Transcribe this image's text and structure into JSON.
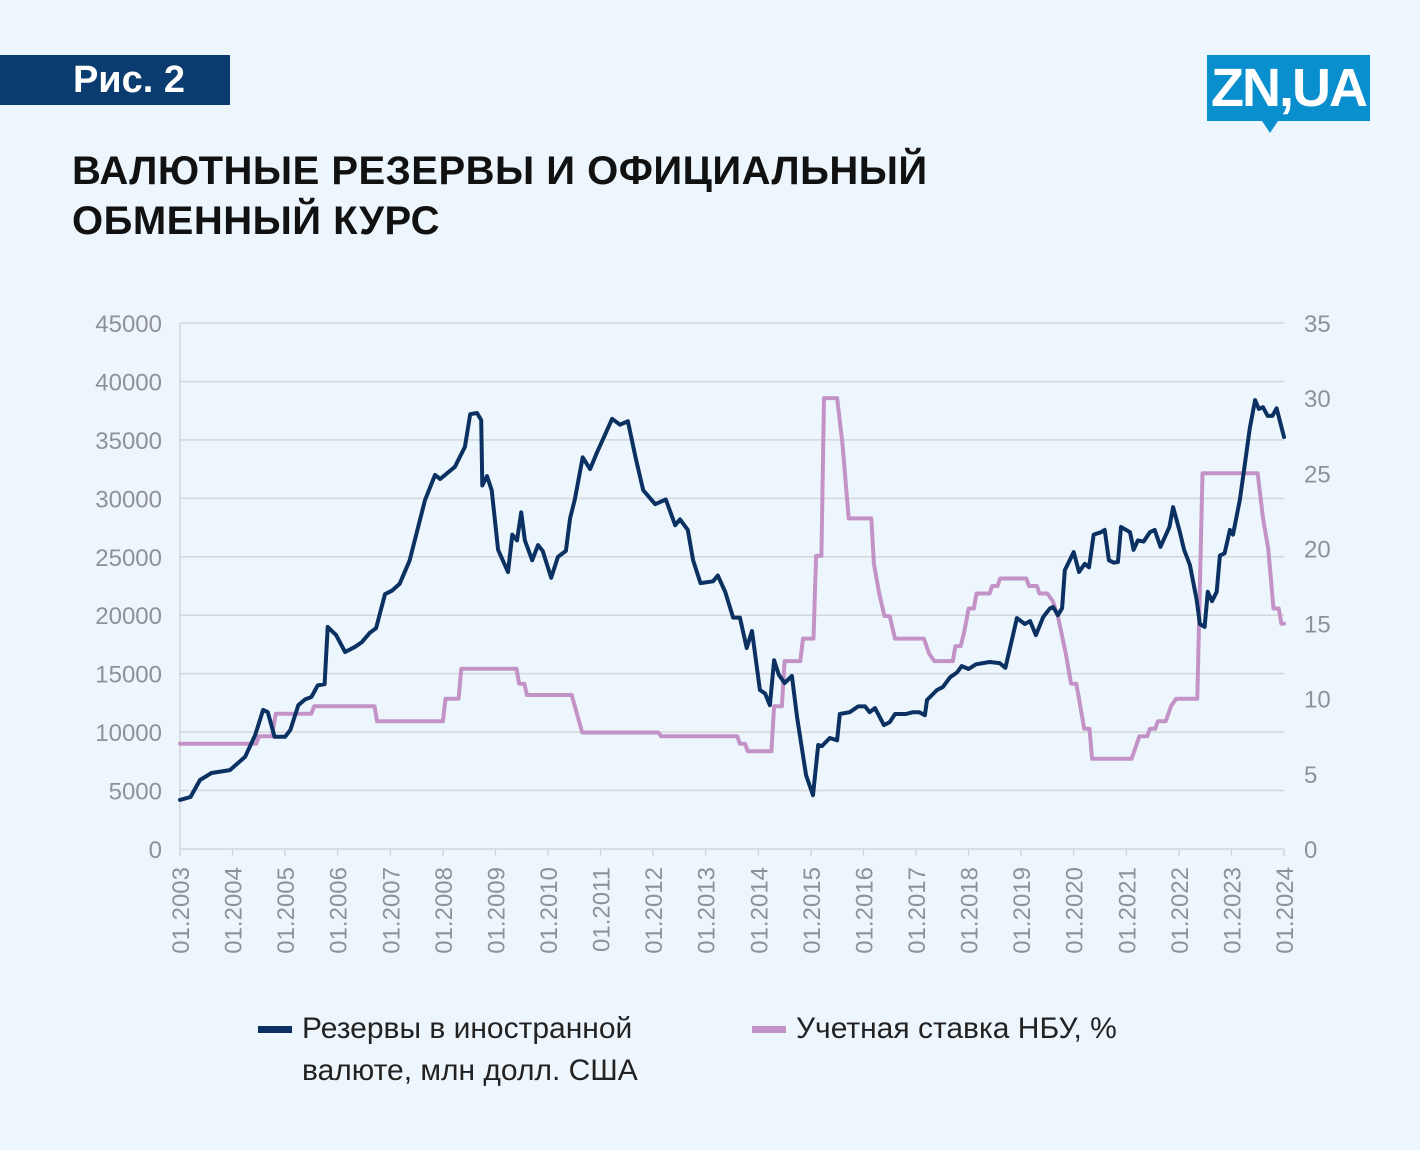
{
  "figure_label": "Рис. 2",
  "logo": "ZN,UA",
  "title": "ВАЛЮТНЫЕ РЕЗЕРВЫ И ОФИЦИАЛЬНЫЙ ОБМЕННЫЙ КУРС",
  "colors": {
    "reserves": "#0a3161",
    "rate": "#c393c8",
    "grid": "#d3d6da",
    "tick": "#8e9297"
  },
  "chart_data": {
    "type": "line",
    "title": "ВАЛЮТНЫЕ РЕЗЕРВЫ И ОФИЦИАЛЬНЫЙ ОБМЕННЫЙ КУРС",
    "x_range": [
      2003,
      2024
    ],
    "x_ticks": [
      "01.2003",
      "01.2004",
      "01.2005",
      "01.2006",
      "01.2007",
      "01.2008",
      "01.2009",
      "01.2010",
      "01.2011",
      "01.2012",
      "01.2013",
      "01.2014",
      "01.2015",
      "01.2016",
      "01.2017",
      "01.2018",
      "01.2019",
      "01.2020",
      "01.2021",
      "01.2022",
      "01.2023",
      "01.2024"
    ],
    "y_left": {
      "range": [
        0,
        45000
      ],
      "ticks": [
        "0",
        "5000",
        "10000",
        "15000",
        "20000",
        "25000",
        "30000",
        "35000",
        "40000",
        "45000"
      ]
    },
    "y_right": {
      "range": [
        0,
        35
      ],
      "ticks": [
        "0",
        "5",
        "10",
        "15",
        "20",
        "25",
        "30",
        "35"
      ]
    },
    "grid": true,
    "legend_placement": "bottom",
    "series": [
      {
        "name": "Резервы в иностранной валюте, млн долл. США",
        "axis": "left",
        "points": [
          [
            2003.0,
            4200
          ],
          [
            2003.2,
            4450
          ],
          [
            2003.38,
            5900
          ],
          [
            2003.6,
            6500
          ],
          [
            2003.95,
            6750
          ],
          [
            2004.24,
            7900
          ],
          [
            2004.43,
            9750
          ],
          [
            2004.58,
            11900
          ],
          [
            2004.67,
            11700
          ],
          [
            2004.8,
            9600
          ],
          [
            2005.0,
            9600
          ],
          [
            2005.1,
            10200
          ],
          [
            2005.25,
            12300
          ],
          [
            2005.38,
            12800
          ],
          [
            2005.5,
            13000
          ],
          [
            2005.62,
            14000
          ],
          [
            2005.75,
            14100
          ],
          [
            2005.81,
            19000
          ],
          [
            2005.97,
            18300
          ],
          [
            2006.14,
            16850
          ],
          [
            2006.33,
            17300
          ],
          [
            2006.46,
            17700
          ],
          [
            2006.61,
            18500
          ],
          [
            2006.73,
            18900
          ],
          [
            2006.9,
            21800
          ],
          [
            2007.03,
            22100
          ],
          [
            2007.18,
            22700
          ],
          [
            2007.37,
            24700
          ],
          [
            2007.66,
            29850
          ],
          [
            2007.85,
            32000
          ],
          [
            2007.95,
            31650
          ],
          [
            2008.23,
            32700
          ],
          [
            2008.42,
            34400
          ],
          [
            2008.52,
            37200
          ],
          [
            2008.65,
            37300
          ],
          [
            2008.73,
            36700
          ],
          [
            2008.75,
            31100
          ],
          [
            2008.84,
            31900
          ],
          [
            2008.93,
            30700
          ],
          [
            2009.05,
            25600
          ],
          [
            2009.24,
            23700
          ],
          [
            2009.32,
            26900
          ],
          [
            2009.41,
            26400
          ],
          [
            2009.49,
            28800
          ],
          [
            2009.56,
            26400
          ],
          [
            2009.7,
            24700
          ],
          [
            2009.81,
            26000
          ],
          [
            2009.9,
            25500
          ],
          [
            2010.06,
            23200
          ],
          [
            2010.19,
            25000
          ],
          [
            2010.34,
            25500
          ],
          [
            2010.42,
            28300
          ],
          [
            2010.51,
            29900
          ],
          [
            2010.66,
            33500
          ],
          [
            2010.8,
            32500
          ],
          [
            2010.93,
            33900
          ],
          [
            2011.08,
            35400
          ],
          [
            2011.22,
            36800
          ],
          [
            2011.37,
            36300
          ],
          [
            2011.52,
            36600
          ],
          [
            2011.67,
            33400
          ],
          [
            2011.81,
            30700
          ],
          [
            2012.04,
            29500
          ],
          [
            2012.24,
            29900
          ],
          [
            2012.42,
            27700
          ],
          [
            2012.51,
            28200
          ],
          [
            2012.66,
            27300
          ],
          [
            2012.76,
            24700
          ],
          [
            2012.9,
            22750
          ],
          [
            2013.14,
            22900
          ],
          [
            2013.23,
            23400
          ],
          [
            2013.37,
            22000
          ],
          [
            2013.52,
            19800
          ],
          [
            2013.65,
            19800
          ],
          [
            2013.78,
            17200
          ],
          [
            2013.88,
            18650
          ],
          [
            2014.03,
            13600
          ],
          [
            2014.13,
            13300
          ],
          [
            2014.22,
            12300
          ],
          [
            2014.3,
            16150
          ],
          [
            2014.39,
            14900
          ],
          [
            2014.5,
            14200
          ],
          [
            2014.64,
            14800
          ],
          [
            2014.74,
            11200
          ],
          [
            2014.91,
            6300
          ],
          [
            2015.04,
            4600
          ],
          [
            2015.14,
            8900
          ],
          [
            2015.21,
            8800
          ],
          [
            2015.36,
            9500
          ],
          [
            2015.5,
            9300
          ],
          [
            2015.55,
            11550
          ],
          [
            2015.74,
            11700
          ],
          [
            2015.9,
            12200
          ],
          [
            2016.03,
            12200
          ],
          [
            2016.12,
            11700
          ],
          [
            2016.22,
            12050
          ],
          [
            2016.39,
            10600
          ],
          [
            2016.5,
            10850
          ],
          [
            2016.6,
            11550
          ],
          [
            2016.81,
            11550
          ],
          [
            2016.94,
            11700
          ],
          [
            2017.06,
            11700
          ],
          [
            2017.17,
            11450
          ],
          [
            2017.21,
            12750
          ],
          [
            2017.4,
            13600
          ],
          [
            2017.51,
            13850
          ],
          [
            2017.65,
            14700
          ],
          [
            2017.78,
            15100
          ],
          [
            2017.87,
            15650
          ],
          [
            2018.0,
            15400
          ],
          [
            2018.14,
            15800
          ],
          [
            2018.4,
            16000
          ],
          [
            2018.59,
            15900
          ],
          [
            2018.7,
            15500
          ],
          [
            2018.83,
            18000
          ],
          [
            2018.92,
            19750
          ],
          [
            2019.07,
            19250
          ],
          [
            2019.17,
            19500
          ],
          [
            2019.28,
            18300
          ],
          [
            2019.42,
            19850
          ],
          [
            2019.55,
            20600
          ],
          [
            2019.61,
            20700
          ],
          [
            2019.7,
            20000
          ],
          [
            2019.78,
            20600
          ],
          [
            2019.83,
            23850
          ],
          [
            2020.0,
            25400
          ],
          [
            2020.1,
            23700
          ],
          [
            2020.21,
            24400
          ],
          [
            2020.29,
            24100
          ],
          [
            2020.38,
            26900
          ],
          [
            2020.52,
            27100
          ],
          [
            2020.59,
            27300
          ],
          [
            2020.67,
            24700
          ],
          [
            2020.76,
            24500
          ],
          [
            2020.84,
            24550
          ],
          [
            2020.9,
            27550
          ],
          [
            2021.07,
            27100
          ],
          [
            2021.14,
            25600
          ],
          [
            2021.22,
            26400
          ],
          [
            2021.33,
            26300
          ],
          [
            2021.45,
            27100
          ],
          [
            2021.54,
            27300
          ],
          [
            2021.65,
            25850
          ],
          [
            2021.82,
            27550
          ],
          [
            2021.89,
            29250
          ],
          [
            2022.02,
            27100
          ],
          [
            2022.1,
            25600
          ],
          [
            2022.21,
            24300
          ],
          [
            2022.34,
            21300
          ],
          [
            2022.4,
            19250
          ],
          [
            2022.49,
            19000
          ],
          [
            2022.55,
            22000
          ],
          [
            2022.63,
            21200
          ],
          [
            2022.72,
            22000
          ],
          [
            2022.78,
            25100
          ],
          [
            2022.87,
            25300
          ],
          [
            2022.97,
            27300
          ],
          [
            2023.03,
            26900
          ],
          [
            2023.16,
            29850
          ],
          [
            2023.24,
            32400
          ],
          [
            2023.35,
            36000
          ],
          [
            2023.45,
            38400
          ],
          [
            2023.52,
            37650
          ],
          [
            2023.6,
            37800
          ],
          [
            2023.69,
            37050
          ],
          [
            2023.78,
            37050
          ],
          [
            2023.86,
            37700
          ],
          [
            2024.0,
            35250
          ]
        ]
      },
      {
        "name": "Учетная ставка НБУ, %",
        "axis": "right",
        "points": [
          [
            2003,
            7
          ],
          [
            2004.45,
            7
          ],
          [
            2004.5,
            7.5
          ],
          [
            2004.75,
            7.5
          ],
          [
            2004.82,
            9
          ],
          [
            2005.5,
            9
          ],
          [
            2005.55,
            9.5
          ],
          [
            2006.7,
            9.5
          ],
          [
            2006.75,
            8.5
          ],
          [
            2008.0,
            8.5
          ],
          [
            2008.05,
            10
          ],
          [
            2008.3,
            10
          ],
          [
            2008.35,
            12
          ],
          [
            2009.4,
            12
          ],
          [
            2009.45,
            11
          ],
          [
            2009.55,
            11
          ],
          [
            2009.6,
            10.25
          ],
          [
            2010.45,
            10.25
          ],
          [
            2010.55,
            9
          ],
          [
            2010.65,
            7.75
          ],
          [
            2012.1,
            7.75
          ],
          [
            2012.15,
            7.5
          ],
          [
            2013.6,
            7.5
          ],
          [
            2013.65,
            7
          ],
          [
            2013.75,
            7
          ],
          [
            2013.8,
            6.5
          ],
          [
            2014.25,
            6.5
          ],
          [
            2014.3,
            9.5
          ],
          [
            2014.45,
            9.5
          ],
          [
            2014.5,
            12.5
          ],
          [
            2014.8,
            12.5
          ],
          [
            2014.85,
            14
          ],
          [
            2015.05,
            14
          ],
          [
            2015.1,
            19.5
          ],
          [
            2015.2,
            19.5
          ],
          [
            2015.25,
            30
          ],
          [
            2015.5,
            30
          ],
          [
            2015.6,
            27
          ],
          [
            2015.72,
            22
          ],
          [
            2016.15,
            22
          ],
          [
            2016.2,
            19
          ],
          [
            2016.3,
            17
          ],
          [
            2016.4,
            15.5
          ],
          [
            2016.5,
            15.5
          ],
          [
            2016.6,
            14
          ],
          [
            2017.15,
            14
          ],
          [
            2017.25,
            13
          ],
          [
            2017.35,
            12.5
          ],
          [
            2017.7,
            12.5
          ],
          [
            2017.75,
            13.5
          ],
          [
            2017.85,
            13.5
          ],
          [
            2017.92,
            14.5
          ],
          [
            2018.0,
            16
          ],
          [
            2018.1,
            16
          ],
          [
            2018.15,
            17
          ],
          [
            2018.4,
            17
          ],
          [
            2018.45,
            17.5
          ],
          [
            2018.55,
            17.5
          ],
          [
            2018.6,
            18
          ],
          [
            2019.1,
            18
          ],
          [
            2019.15,
            17.5
          ],
          [
            2019.3,
            17.5
          ],
          [
            2019.35,
            17
          ],
          [
            2019.5,
            17
          ],
          [
            2019.6,
            16.5
          ],
          [
            2019.7,
            15.5
          ],
          [
            2019.85,
            13
          ],
          [
            2019.95,
            11
          ],
          [
            2020.05,
            11
          ],
          [
            2020.1,
            10
          ],
          [
            2020.2,
            8
          ],
          [
            2020.3,
            8
          ],
          [
            2020.35,
            6
          ],
          [
            2021.1,
            6
          ],
          [
            2021.15,
            6.5
          ],
          [
            2021.25,
            7.5
          ],
          [
            2021.4,
            7.5
          ],
          [
            2021.45,
            8
          ],
          [
            2021.55,
            8
          ],
          [
            2021.6,
            8.5
          ],
          [
            2021.75,
            8.5
          ],
          [
            2021.85,
            9.5
          ],
          [
            2021.95,
            10
          ],
          [
            2022.35,
            10
          ],
          [
            2022.45,
            25
          ],
          [
            2023.5,
            25
          ],
          [
            2023.6,
            22
          ],
          [
            2023.7,
            20
          ],
          [
            2023.8,
            16
          ],
          [
            2023.9,
            16
          ],
          [
            2023.95,
            15
          ],
          [
            2024.0,
            15
          ]
        ]
      }
    ]
  }
}
